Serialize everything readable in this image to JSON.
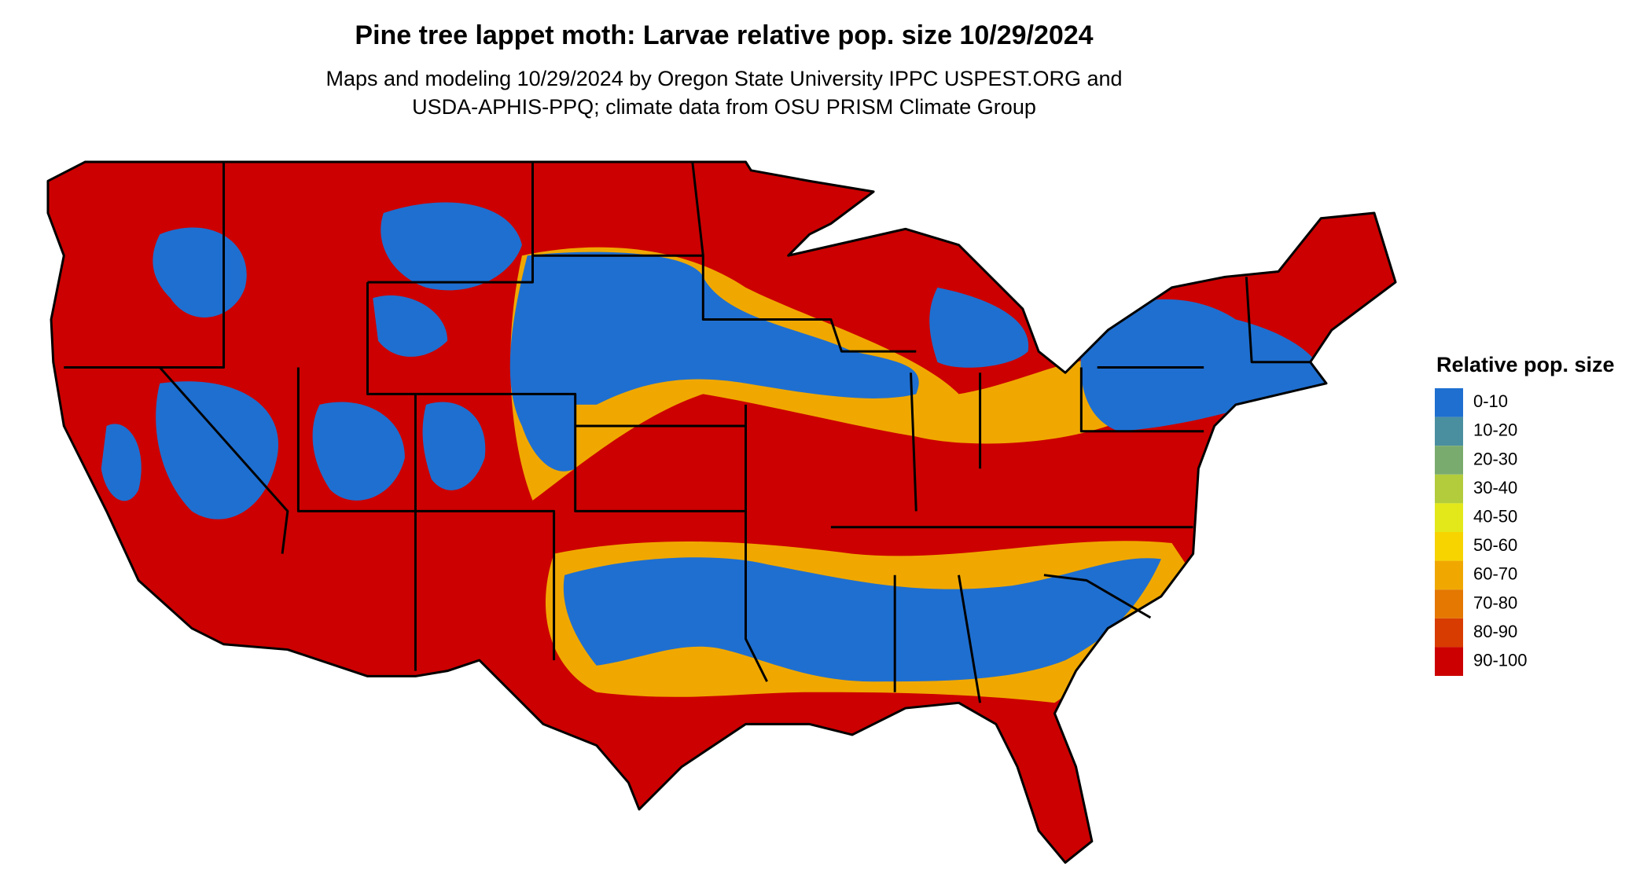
{
  "title": "Pine tree lappet moth: Larvae relative pop. size 10/29/2024",
  "subtitle": [
    "Maps and modeling 10/29/2024 by Oregon State University IPPC USPEST.ORG and",
    "USDA-APHIS-PPQ; climate data from OSU PRISM Climate Group"
  ],
  "legend": {
    "title": "Relative pop. size",
    "items": [
      {
        "label": "0-10",
        "color": "#1f6fd0"
      },
      {
        "label": "10-20",
        "color": "#4a8fa0"
      },
      {
        "label": "20-30",
        "color": "#7aab6e"
      },
      {
        "label": "30-40",
        "color": "#b3cc3c"
      },
      {
        "label": "40-50",
        "color": "#e3e81a"
      },
      {
        "label": "50-60",
        "color": "#f7d400"
      },
      {
        "label": "60-70",
        "color": "#f0a800"
      },
      {
        "label": "70-80",
        "color": "#e47800"
      },
      {
        "label": "80-90",
        "color": "#d83c00"
      },
      {
        "label": "90-100",
        "color": "#cc0000"
      }
    ]
  }
}
